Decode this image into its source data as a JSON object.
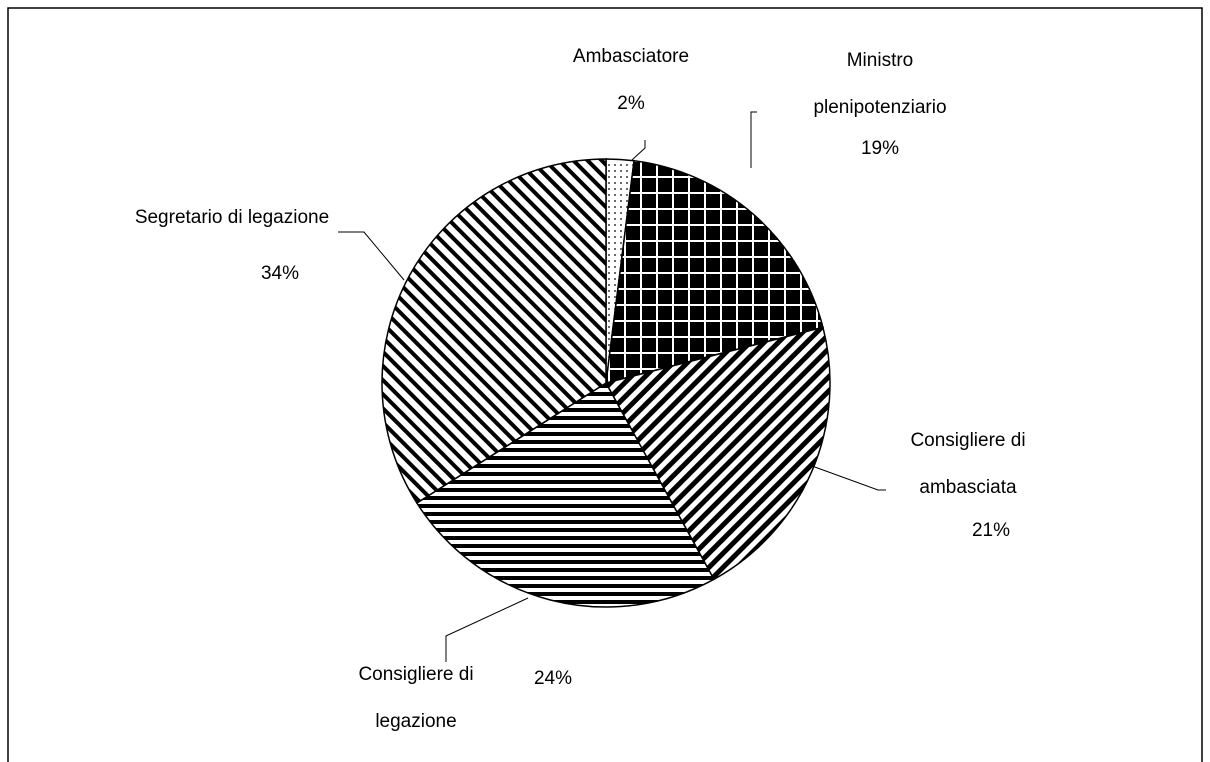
{
  "chart_data": {
    "type": "pie",
    "categories": [
      "Ambasciatore",
      "Ministro plenipotenziario",
      "Consigliere di ambasciata",
      "Consigliere di legazione",
      "Segretario di legazione"
    ],
    "values": [
      2,
      19,
      21,
      24,
      34
    ],
    "value_labels": [
      "2%",
      "19%",
      "21%",
      "24%",
      "34%"
    ],
    "patterns": [
      "dots",
      "grid",
      "diagonal-down",
      "horizontal",
      "diagonal-up"
    ],
    "start_angle": 90,
    "direction": "clockwise"
  }
}
